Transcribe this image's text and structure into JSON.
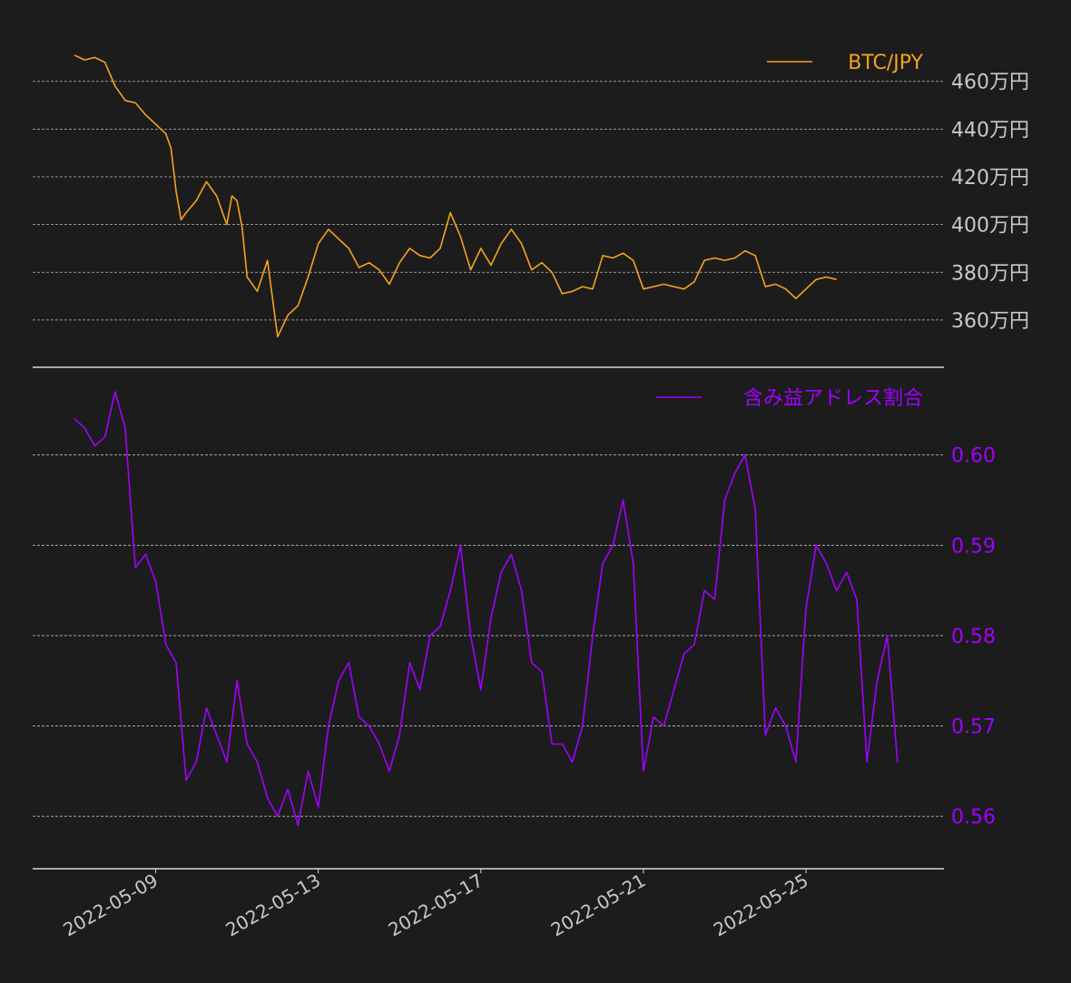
{
  "colors": {
    "background": "#1c1c1c",
    "price_line": "#f7a21b",
    "ratio_line": "#a100ff",
    "axis_text": "#c8c8c8",
    "grid": "#bdbdbd",
    "axis_line": "#d9d9d9"
  },
  "chart_data": [
    {
      "type": "line",
      "panel": "top",
      "legend": {
        "label": "BTC/JPY",
        "placement": "top-right"
      },
      "y_tick_labels": [
        "360万円",
        "380万円",
        "400万円",
        "420万円",
        "440万円",
        "460万円"
      ],
      "y_ticks": [
        360,
        380,
        400,
        420,
        440,
        460
      ],
      "ylim": [
        344,
        477
      ],
      "y_unit": "万円",
      "grid": true,
      "series": [
        {
          "name": "BTC/JPY",
          "x": [
            "2022-05-07 00:00",
            "2022-05-07 06:00",
            "2022-05-07 12:00",
            "2022-05-07 18:00",
            "2022-05-08 00:00",
            "2022-05-08 03:00",
            "2022-05-08 06:00",
            "2022-05-08 12:00",
            "2022-05-08 18:00",
            "2022-05-09 00:00",
            "2022-05-09 06:00",
            "2022-05-09 09:00",
            "2022-05-09 12:00",
            "2022-05-09 15:00",
            "2022-05-09 18:00",
            "2022-05-10 00:00",
            "2022-05-10 06:00",
            "2022-05-10 12:00",
            "2022-05-10 18:00",
            "2022-05-10 21:00",
            "2022-05-11 00:00",
            "2022-05-11 03:00",
            "2022-05-11 06:00",
            "2022-05-11 12:00",
            "2022-05-11 18:00",
            "2022-05-12 00:00",
            "2022-05-12 06:00",
            "2022-05-12 12:00",
            "2022-05-12 15:00",
            "2022-05-12 18:00",
            "2022-05-13 00:00",
            "2022-05-13 06:00",
            "2022-05-13 12:00",
            "2022-05-13 18:00",
            "2022-05-14 00:00",
            "2022-05-14 06:00",
            "2022-05-14 12:00",
            "2022-05-14 18:00",
            "2022-05-15 00:00",
            "2022-05-15 06:00",
            "2022-05-15 12:00",
            "2022-05-15 18:00",
            "2022-05-16 00:00",
            "2022-05-16 06:00",
            "2022-05-16 12:00",
            "2022-05-16 18:00",
            "2022-05-17 00:00",
            "2022-05-17 06:00",
            "2022-05-17 12:00",
            "2022-05-17 18:00",
            "2022-05-18 00:00",
            "2022-05-18 06:00",
            "2022-05-18 12:00",
            "2022-05-18 18:00",
            "2022-05-19 00:00",
            "2022-05-19 06:00",
            "2022-05-19 12:00",
            "2022-05-19 18:00",
            "2022-05-20 00:00",
            "2022-05-20 06:00",
            "2022-05-20 12:00",
            "2022-05-20 18:00",
            "2022-05-21 00:00",
            "2022-05-21 06:00",
            "2022-05-21 12:00",
            "2022-05-21 18:00",
            "2022-05-22 00:00",
            "2022-05-22 06:00",
            "2022-05-22 12:00",
            "2022-05-22 18:00",
            "2022-05-23 00:00",
            "2022-05-23 06:00",
            "2022-05-23 12:00",
            "2022-05-23 18:00",
            "2022-05-24 00:00",
            "2022-05-24 06:00",
            "2022-05-24 12:00",
            "2022-05-24 18:00",
            "2022-05-25 00:00",
            "2022-05-25 06:00",
            "2022-05-25 12:00",
            "2022-05-25 18:00"
          ],
          "values": [
            471,
            469,
            470,
            468,
            458,
            455,
            452,
            451,
            446,
            442,
            438,
            432,
            414,
            402,
            405,
            410,
            418,
            412,
            400,
            412,
            410,
            399,
            378,
            372,
            385,
            353,
            362,
            366,
            372,
            378,
            392,
            398,
            394,
            390,
            382,
            384,
            381,
            375,
            384,
            390,
            387,
            386,
            390,
            405,
            395,
            381,
            390,
            383,
            392,
            398,
            392,
            381,
            384,
            380,
            371,
            372,
            374,
            373,
            387,
            386,
            388,
            385,
            373,
            374,
            375,
            374,
            373,
            376,
            385,
            386,
            385,
            386,
            389,
            387,
            374,
            375,
            373,
            369,
            373,
            377,
            378,
            377
          ]
        }
      ]
    },
    {
      "type": "line",
      "panel": "bottom",
      "legend": {
        "label": "含み益アドレス割合",
        "placement": "top-right"
      },
      "y_tick_labels": [
        "0.56",
        "0.57",
        "0.58",
        "0.59",
        "0.60"
      ],
      "y_ticks": [
        0.56,
        0.57,
        0.58,
        0.59,
        0.6
      ],
      "ylim": [
        0.5555,
        0.6082
      ],
      "grid": true,
      "x_tick_labels": [
        "2022-05-09",
        "2022-05-13",
        "2022-05-17",
        "2022-05-21",
        "2022-05-25"
      ],
      "x_ticks": [
        "2022-05-09",
        "2022-05-13",
        "2022-05-17",
        "2022-05-21",
        "2022-05-25"
      ],
      "xlim": [
        "2022-05-07 00:00",
        "2022-05-27 12:00"
      ],
      "series": [
        {
          "name": "含み益アドレス割合",
          "x": [
            "2022-05-07 00:00",
            "2022-05-07 06:00",
            "2022-05-07 12:00",
            "2022-05-07 18:00",
            "2022-05-08 00:00",
            "2022-05-08 03:00",
            "2022-05-08 06:00",
            "2022-05-08 09:00",
            "2022-05-08 12:00",
            "2022-05-08 18:00",
            "2022-05-09 00:00",
            "2022-05-09 06:00",
            "2022-05-09 12:00",
            "2022-05-09 18:00",
            "2022-05-10 00:00",
            "2022-05-10 06:00",
            "2022-05-10 12:00",
            "2022-05-10 18:00",
            "2022-05-11 00:00",
            "2022-05-11 06:00",
            "2022-05-11 12:00",
            "2022-05-11 18:00",
            "2022-05-12 00:00",
            "2022-05-12 06:00",
            "2022-05-12 12:00",
            "2022-05-12 18:00",
            "2022-05-13 00:00",
            "2022-05-13 06:00",
            "2022-05-13 12:00",
            "2022-05-13 18:00",
            "2022-05-14 00:00",
            "2022-05-14 06:00",
            "2022-05-14 12:00",
            "2022-05-14 18:00",
            "2022-05-15 00:00",
            "2022-05-15 06:00",
            "2022-05-15 12:00",
            "2022-05-15 18:00",
            "2022-05-16 00:00",
            "2022-05-16 06:00",
            "2022-05-16 12:00",
            "2022-05-16 18:00",
            "2022-05-17 00:00",
            "2022-05-17 06:00",
            "2022-05-17 12:00",
            "2022-05-17 18:00",
            "2022-05-18 00:00",
            "2022-05-18 06:00",
            "2022-05-18 12:00",
            "2022-05-18 18:00",
            "2022-05-19 00:00",
            "2022-05-19 06:00",
            "2022-05-19 12:00",
            "2022-05-19 18:00",
            "2022-05-20 00:00",
            "2022-05-20 06:00",
            "2022-05-20 12:00",
            "2022-05-20 18:00",
            "2022-05-21 00:00",
            "2022-05-21 06:00",
            "2022-05-21 12:00",
            "2022-05-21 18:00",
            "2022-05-22 00:00",
            "2022-05-22 06:00",
            "2022-05-22 12:00",
            "2022-05-22 18:00",
            "2022-05-23 00:00",
            "2022-05-23 06:00",
            "2022-05-23 12:00",
            "2022-05-23 18:00",
            "2022-05-24 00:00",
            "2022-05-24 06:00",
            "2022-05-24 12:00",
            "2022-05-24 18:00",
            "2022-05-25 00:00",
            "2022-05-25 06:00",
            "2022-05-25 12:00",
            "2022-05-25 18:00",
            "2022-05-26 00:00",
            "2022-05-26 06:00",
            "2022-05-26 12:00",
            "2022-05-26 18:00",
            "2022-05-27 00:00",
            "2022-05-27 06:00"
          ],
          "values": [
            0.604,
            0.603,
            0.601,
            0.602,
            0.607,
            0.605,
            0.603,
            0.595,
            0.5875,
            0.589,
            0.586,
            0.579,
            0.577,
            0.564,
            0.566,
            0.572,
            0.569,
            0.566,
            0.575,
            0.568,
            0.566,
            0.562,
            0.56,
            0.563,
            0.559,
            0.565,
            0.561,
            0.57,
            0.575,
            0.577,
            0.571,
            0.57,
            0.568,
            0.565,
            0.569,
            0.577,
            0.574,
            0.58,
            0.581,
            0.585,
            0.59,
            0.58,
            0.574,
            0.582,
            0.587,
            0.589,
            0.585,
            0.577,
            0.576,
            0.568,
            0.568,
            0.566,
            0.57,
            0.58,
            0.588,
            0.59,
            0.595,
            0.588,
            0.565,
            0.571,
            0.57,
            0.574,
            0.578,
            0.579,
            0.585,
            0.584,
            0.595,
            0.598,
            0.6,
            0.594,
            0.569,
            0.572,
            0.57,
            0.566,
            0.583,
            0.59,
            0.588,
            0.585,
            0.587,
            0.584,
            0.566,
            0.575,
            0.58,
            0.566
          ]
        }
      ]
    }
  ]
}
